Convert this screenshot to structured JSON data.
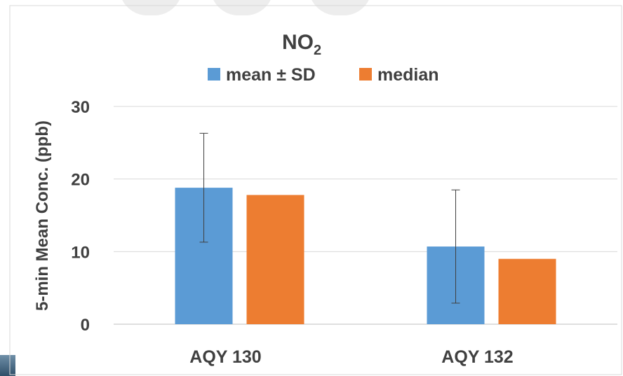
{
  "colors": {
    "mean": "#5b9bd5",
    "median": "#ed7d31",
    "grid": "#d9d9d9",
    "text": "#404040",
    "errorbar": "#404040"
  },
  "chart_data": {
    "type": "bar",
    "title_main": "NO",
    "title_sub": "2",
    "ylabel": "5-min Mean Conc. (ppb)",
    "xlabel": "",
    "ylim": [
      0,
      30
    ],
    "yticks": [
      0,
      10,
      20,
      30
    ],
    "grid": true,
    "legend_position": "top",
    "categories": [
      "AQY 130",
      "AQY 132"
    ],
    "series": [
      {
        "name": "mean ± SD",
        "values": [
          18.8,
          10.7
        ],
        "error_low": [
          11.3,
          2.9
        ],
        "error_high": [
          26.3,
          18.5
        ]
      },
      {
        "name": "median",
        "values": [
          17.8,
          9.0
        ]
      }
    ]
  }
}
